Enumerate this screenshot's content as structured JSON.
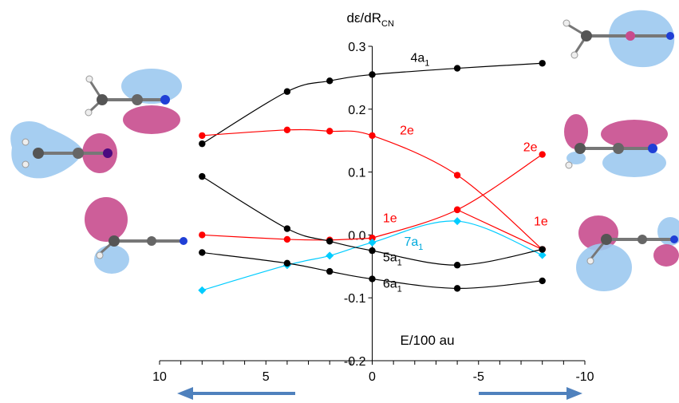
{
  "chart_data": {
    "type": "line",
    "title": "",
    "ylabel_main": "dε/dR",
    "ylabel_sub": "CN",
    "xlabel": "E/100 au",
    "xlim": [
      10,
      -10
    ],
    "ylim": [
      -0.2,
      0.3
    ],
    "x_ticks": [
      "10",
      "5",
      "0",
      "-5",
      "-10"
    ],
    "y_ticks": [
      "0.3",
      "0.2",
      "0.1",
      "0.0",
      "-0.1",
      "-0.2"
    ],
    "grid": false,
    "series": [
      {
        "name": "4a1",
        "label_main": "4a",
        "label_sub": "1",
        "color": "#000000",
        "x": [
          8,
          4,
          2,
          0,
          -4,
          -8
        ],
        "y": [
          0.145,
          0.228,
          0.245,
          0.255,
          0.265,
          0.273
        ]
      },
      {
        "name": "2e",
        "label_main": "2e",
        "label_sub": "",
        "color": "#ff0000",
        "x": [
          8,
          4,
          2,
          0,
          -4,
          -8
        ],
        "y": [
          0.158,
          0.167,
          0.165,
          0.158,
          0.095,
          -0.023
        ]
      },
      {
        "name": "2e",
        "label_main": "2e",
        "label_sub": "",
        "color": "#ff0000",
        "x": [
          0,
          -4,
          -8
        ],
        "y": [
          -0.005,
          0.04,
          0.128
        ]
      },
      {
        "name": "1e",
        "label_main": "1e",
        "label_sub": "",
        "color": "#ff0000",
        "x": [
          8,
          4,
          2,
          0
        ],
        "y": [
          0.0,
          -0.007,
          -0.008,
          -0.005
        ]
      },
      {
        "name": "1e",
        "label_main": "1e",
        "label_sub": "",
        "color": "#ff0000",
        "x": [
          -4,
          -8
        ],
        "y": [
          0.04,
          -0.023
        ]
      },
      {
        "name": "7a1",
        "label_main": "7a",
        "label_sub": "1",
        "color": "#00ccff",
        "x": [
          8,
          4,
          2,
          0,
          -4,
          -8
        ],
        "y": [
          -0.088,
          -0.048,
          -0.033,
          -0.012,
          0.022,
          -0.032
        ]
      },
      {
        "name": "5a1",
        "label_main": "5a",
        "label_sub": "1",
        "color": "#000000",
        "x": [
          8,
          4,
          2,
          0,
          -4,
          -8
        ],
        "y": [
          0.093,
          0.01,
          -0.01,
          -0.025,
          -0.048,
          -0.023
        ]
      },
      {
        "name": "6a1",
        "label_main": "6a",
        "label_sub": "1",
        "color": "#000000",
        "x": [
          8,
          4,
          2,
          0,
          -4,
          -8
        ],
        "y": [
          -0.028,
          -0.045,
          -0.058,
          -0.07,
          -0.085,
          -0.073
        ]
      }
    ],
    "arrows": [
      {
        "direction": "toward-positive",
        "color": "#4f81bd"
      },
      {
        "direction": "toward-negative",
        "color": "#4f81bd"
      }
    ]
  },
  "orbital_images": [
    {
      "name": "4a1-left-orbital"
    },
    {
      "name": "4a1-right-orbital"
    },
    {
      "name": "2e-left-orbital"
    },
    {
      "name": "2e-right-orbital"
    },
    {
      "name": "1e-left-orbital"
    },
    {
      "name": "1e-right-orbital"
    }
  ],
  "colors": {
    "lobe_blue": "#9cc9f0",
    "lobe_pink": "#c84c8e",
    "atom_gray": "#666666",
    "atom_blue": "#1f3fd6",
    "atom_white": "#f2f2f2"
  }
}
